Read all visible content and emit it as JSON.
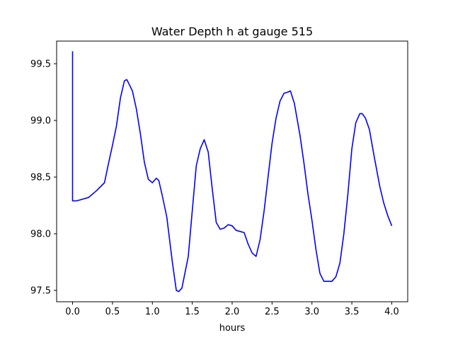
{
  "chart_data": {
    "type": "line",
    "title": "Water Depth h at gauge 515",
    "xlabel": "hours",
    "ylabel": "",
    "xlim": [
      -0.2,
      4.2
    ],
    "ylim": [
      97.4,
      99.7
    ],
    "xticks": [
      0.0,
      0.5,
      1.0,
      1.5,
      2.0,
      2.5,
      3.0,
      3.5,
      4.0
    ],
    "xtick_labels": [
      "0.0",
      "0.5",
      "1.0",
      "1.5",
      "2.0",
      "2.5",
      "3.0",
      "3.5",
      "4.0"
    ],
    "yticks": [
      97.5,
      98.0,
      98.5,
      99.0,
      99.5
    ],
    "ytick_labels": [
      "97.5",
      "98.0",
      "98.5",
      "99.0",
      "99.5"
    ],
    "grid": false,
    "series": [
      {
        "color": "#0000ff",
        "x": [
          0.0,
          0.0,
          0.05,
          0.1,
          0.2,
          0.3,
          0.4,
          0.45,
          0.5,
          0.55,
          0.6,
          0.65,
          0.68,
          0.75,
          0.8,
          0.85,
          0.9,
          0.95,
          1.0,
          1.05,
          1.08,
          1.12,
          1.18,
          1.25,
          1.3,
          1.33,
          1.37,
          1.45,
          1.5,
          1.55,
          1.6,
          1.65,
          1.7,
          1.75,
          1.8,
          1.85,
          1.9,
          1.95,
          2.0,
          2.05,
          2.1,
          2.15,
          2.2,
          2.25,
          2.3,
          2.35,
          2.4,
          2.45,
          2.5,
          2.55,
          2.6,
          2.65,
          2.7,
          2.73,
          2.78,
          2.85,
          2.9,
          2.95,
          3.0,
          3.05,
          3.1,
          3.15,
          3.2,
          3.25,
          3.3,
          3.35,
          3.4,
          3.45,
          3.5,
          3.55,
          3.6,
          3.63,
          3.67,
          3.72,
          3.78,
          3.85,
          3.9,
          3.95,
          4.0
        ],
        "y": [
          99.61,
          98.29,
          98.29,
          98.3,
          98.32,
          98.38,
          98.45,
          98.62,
          98.78,
          98.95,
          99.2,
          99.35,
          99.36,
          99.26,
          99.1,
          98.88,
          98.63,
          98.48,
          98.45,
          98.49,
          98.47,
          98.35,
          98.15,
          97.75,
          97.5,
          97.49,
          97.52,
          97.8,
          98.2,
          98.6,
          98.75,
          98.83,
          98.72,
          98.4,
          98.1,
          98.04,
          98.05,
          98.08,
          98.07,
          98.03,
          98.02,
          98.01,
          97.91,
          97.83,
          97.8,
          97.95,
          98.2,
          98.5,
          98.8,
          99.02,
          99.17,
          99.24,
          99.25,
          99.26,
          99.15,
          98.87,
          98.62,
          98.35,
          98.12,
          97.86,
          97.65,
          97.58,
          97.58,
          97.58,
          97.62,
          97.74,
          98.0,
          98.35,
          98.75,
          98.98,
          99.06,
          99.06,
          99.02,
          98.92,
          98.68,
          98.42,
          98.27,
          98.16,
          98.07
        ]
      }
    ]
  }
}
